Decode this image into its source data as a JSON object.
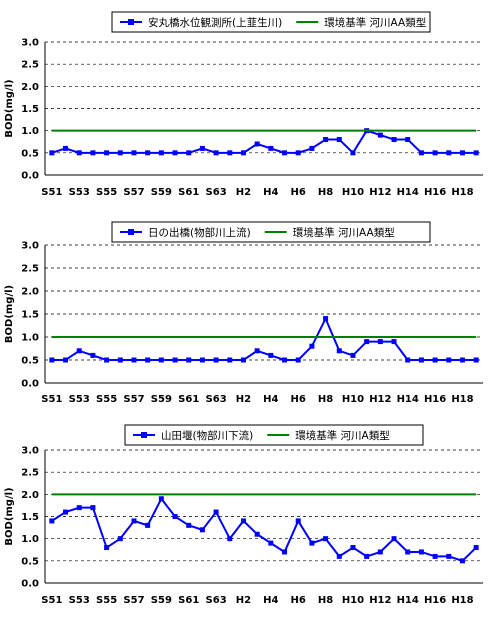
{
  "chart_data": [
    {
      "type": "line",
      "ylabel": "BOD(mg/l)",
      "ylim": [
        0,
        3.0
      ],
      "yticks": [
        "0.0",
        "0.5",
        "1.0",
        "1.5",
        "2.0",
        "2.5",
        "3.0"
      ],
      "categories": [
        "S51",
        "S52",
        "S53",
        "S54",
        "S55",
        "S56",
        "S57",
        "S58",
        "S59",
        "S60",
        "S61",
        "S62",
        "S63",
        "H1",
        "H2",
        "H3",
        "H4",
        "H5",
        "H6",
        "H7",
        "H8",
        "H9",
        "H10",
        "H11",
        "H12",
        "H13",
        "H14",
        "H15",
        "H16",
        "H17",
        "H18",
        "H19"
      ],
      "xtick_labels": [
        "S51",
        "S53",
        "S55",
        "S57",
        "S59",
        "S61",
        "S63",
        "H2",
        "H4",
        "H6",
        "H8",
        "H10",
        "H12",
        "H14",
        "H16",
        "H18"
      ],
      "grid": true,
      "series": [
        {
          "name": "安丸橋水位観測所(上韮生川)",
          "color": "#0000ff",
          "values": [
            0.5,
            0.6,
            0.5,
            0.5,
            0.5,
            0.5,
            0.5,
            0.5,
            0.5,
            0.5,
            0.5,
            0.6,
            0.5,
            0.5,
            0.5,
            0.7,
            0.6,
            0.5,
            0.5,
            0.6,
            0.8,
            0.8,
            0.5,
            1.0,
            0.9,
            0.8,
            0.8,
            0.5,
            0.5,
            0.5,
            0.5,
            0.5
          ]
        },
        {
          "name": "環境基準 河川AA類型",
          "color": "#008000",
          "values": [
            1.0,
            1.0,
            1.0,
            1.0,
            1.0,
            1.0,
            1.0,
            1.0,
            1.0,
            1.0,
            1.0,
            1.0,
            1.0,
            1.0,
            1.0,
            1.0,
            1.0,
            1.0,
            1.0,
            1.0,
            1.0,
            1.0,
            1.0,
            1.0,
            1.0,
            1.0,
            1.0,
            1.0,
            1.0,
            1.0,
            1.0,
            1.0
          ]
        }
      ]
    },
    {
      "type": "line",
      "ylabel": "BOD(mg/l)",
      "ylim": [
        0,
        3.0
      ],
      "yticks": [
        "0.0",
        "0.5",
        "1.0",
        "1.5",
        "2.0",
        "2.5",
        "3.0"
      ],
      "categories": [
        "S51",
        "S52",
        "S53",
        "S54",
        "S55",
        "S56",
        "S57",
        "S58",
        "S59",
        "S60",
        "S61",
        "S62",
        "S63",
        "H1",
        "H2",
        "H3",
        "H4",
        "H5",
        "H6",
        "H7",
        "H8",
        "H9",
        "H10",
        "H11",
        "H12",
        "H13",
        "H14",
        "H15",
        "H16",
        "H17",
        "H18",
        "H19"
      ],
      "xtick_labels": [
        "S51",
        "S53",
        "S55",
        "S57",
        "S59",
        "S61",
        "S63",
        "H2",
        "H4",
        "H6",
        "H8",
        "H10",
        "H12",
        "H14",
        "H16",
        "H18"
      ],
      "grid": true,
      "series": [
        {
          "name": "日の出橋(物部川上流)",
          "color": "#0000ff",
          "values": [
            0.5,
            0.5,
            0.7,
            0.6,
            0.5,
            0.5,
            0.5,
            0.5,
            0.5,
            0.5,
            0.5,
            0.5,
            0.5,
            0.5,
            0.5,
            0.7,
            0.6,
            0.5,
            0.5,
            0.8,
            1.4,
            0.7,
            0.6,
            0.9,
            0.9,
            0.9,
            0.5,
            0.5,
            0.5,
            0.5,
            0.5,
            0.5
          ]
        },
        {
          "name": "環境基準 河川AA類型",
          "color": "#008000",
          "values": [
            1.0,
            1.0,
            1.0,
            1.0,
            1.0,
            1.0,
            1.0,
            1.0,
            1.0,
            1.0,
            1.0,
            1.0,
            1.0,
            1.0,
            1.0,
            1.0,
            1.0,
            1.0,
            1.0,
            1.0,
            1.0,
            1.0,
            1.0,
            1.0,
            1.0,
            1.0,
            1.0,
            1.0,
            1.0,
            1.0,
            1.0,
            1.0
          ]
        }
      ]
    },
    {
      "type": "line",
      "ylabel": "BOD(mg/l)",
      "ylim": [
        0,
        3.0
      ],
      "yticks": [
        "0.0",
        "0.5",
        "1.0",
        "1.5",
        "2.0",
        "2.5",
        "3.0"
      ],
      "categories": [
        "S51",
        "S52",
        "S53",
        "S54",
        "S55",
        "S56",
        "S57",
        "S58",
        "S59",
        "S60",
        "S61",
        "S62",
        "S63",
        "H1",
        "H2",
        "H3",
        "H4",
        "H5",
        "H6",
        "H7",
        "H8",
        "H9",
        "H10",
        "H11",
        "H12",
        "H13",
        "H14",
        "H15",
        "H16",
        "H17",
        "H18",
        "H19"
      ],
      "xtick_labels": [
        "S51",
        "S53",
        "S55",
        "S57",
        "S59",
        "S61",
        "S63",
        "H2",
        "H4",
        "H6",
        "H8",
        "H10",
        "H12",
        "H14",
        "H16",
        "H18"
      ],
      "grid": true,
      "series": [
        {
          "name": "山田堰(物部川下流)",
          "color": "#0000ff",
          "values": [
            1.4,
            1.6,
            1.7,
            1.7,
            0.8,
            1.0,
            1.4,
            1.3,
            1.9,
            1.5,
            1.3,
            1.2,
            1.6,
            1.0,
            1.4,
            1.1,
            0.9,
            0.7,
            1.4,
            0.9,
            1.0,
            0.6,
            0.8,
            0.6,
            0.7,
            1.0,
            0.7,
            0.7,
            0.6,
            0.6,
            0.5,
            0.8
          ]
        },
        {
          "name": "環境基準 河川A類型",
          "color": "#008000",
          "values": [
            2.0,
            2.0,
            2.0,
            2.0,
            2.0,
            2.0,
            2.0,
            2.0,
            2.0,
            2.0,
            2.0,
            2.0,
            2.0,
            2.0,
            2.0,
            2.0,
            2.0,
            2.0,
            2.0,
            2.0,
            2.0,
            2.0,
            2.0,
            2.0,
            2.0,
            2.0,
            2.0,
            2.0,
            2.0,
            2.0,
            2.0,
            2.0
          ]
        }
      ]
    }
  ]
}
